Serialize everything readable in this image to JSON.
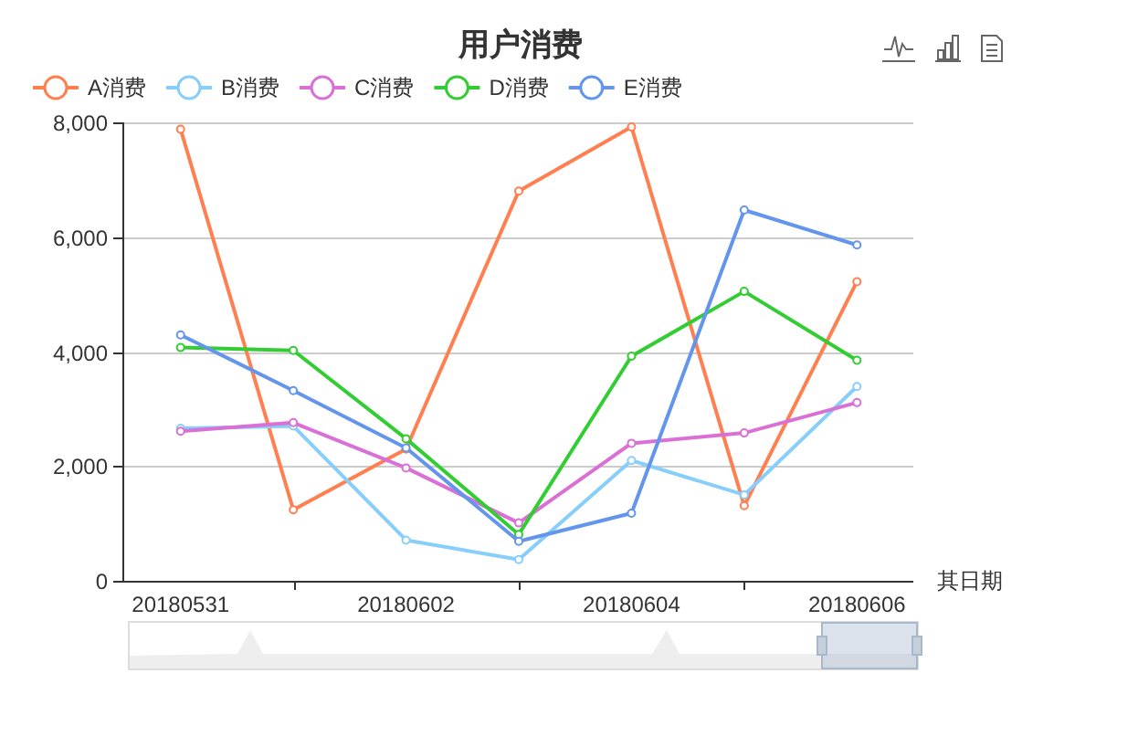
{
  "chart_data": {
    "type": "line",
    "title": "用户消费",
    "xlabel": "其日期",
    "categories": [
      "20180531",
      null,
      "20180602",
      null,
      "20180604",
      null,
      "20180606"
    ],
    "series": [
      {
        "name": "A消费",
        "color": "#ff7f50",
        "values": [
          7880,
          1240,
          2300,
          6800,
          7920,
          1310,
          5220
        ]
      },
      {
        "name": "B消费",
        "color": "#87cefa",
        "values": [
          2660,
          2700,
          710,
          370,
          2100,
          1500,
          3390
        ]
      },
      {
        "name": "C消费",
        "color": "#da70d6",
        "values": [
          2610,
          2760,
          1970,
          1010,
          2400,
          2580,
          3110
        ]
      },
      {
        "name": "D消费",
        "color": "#32cd32",
        "values": [
          4070,
          4020,
          2480,
          810,
          3920,
          5050,
          3850
        ]
      },
      {
        "name": "E消费",
        "color": "#6495ed",
        "values": [
          4290,
          3320,
          2320,
          690,
          1180,
          6470,
          5860
        ]
      }
    ],
    "ylim": [
      0,
      8000
    ],
    "yticks": [
      0,
      {
        "value": 2000,
        "label": "2,000"
      },
      {
        "value": 4000,
        "label": "4,000"
      },
      {
        "value": 6000,
        "label": "6,000"
      },
      {
        "value": 8000,
        "label": "8,000"
      }
    ],
    "grid": "y",
    "legend": "top left",
    "marker": "circle",
    "line_style": "solid"
  }
}
